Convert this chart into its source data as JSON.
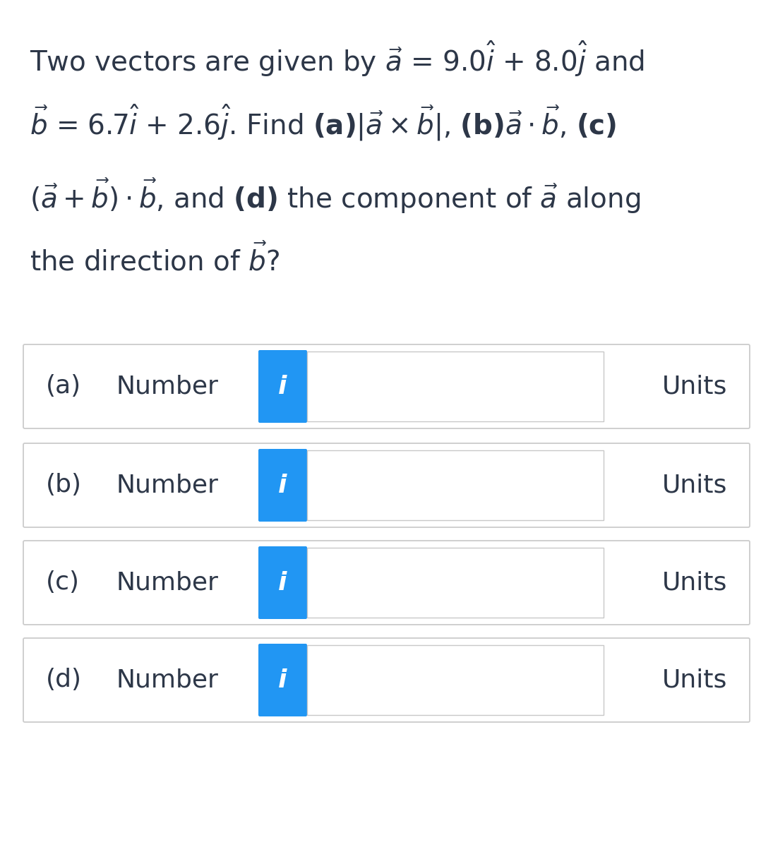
{
  "background_color": "#ffffff",
  "box_background": "#ffffff",
  "text_color": "#2d3748",
  "blue_color": "#2196F3",
  "border_color": "#c8c8c8",
  "outer_border_color": "#cccccc",
  "figsize": [
    10.95,
    12.0
  ],
  "dpi": 100,
  "rows": [
    {
      "label": "(a)",
      "unit": "Units"
    },
    {
      "label": "(b)",
      "unit": "Units"
    },
    {
      "label": "(c)",
      "unit": "Units"
    },
    {
      "label": "(d)",
      "unit": "Units"
    }
  ]
}
